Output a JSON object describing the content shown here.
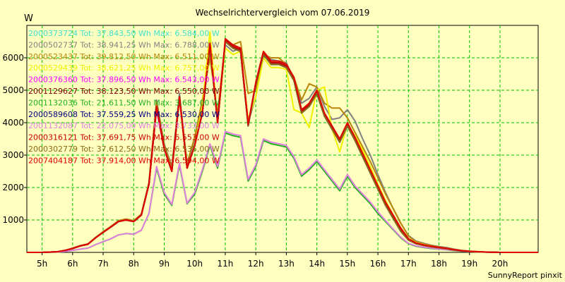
{
  "chart_data": {
    "type": "line",
    "title": "Wechselrichtervergleich vom 07.06.2019",
    "ylabel": "W",
    "xlabel": "",
    "credit": "SunnyReport pinxit",
    "xlim": [
      4.5,
      21.25
    ],
    "ylim": [
      0,
      7000
    ],
    "grid": true,
    "legend_position": "top-left",
    "x_ticks": [
      {
        "v": 5,
        "label": "5h"
      },
      {
        "v": 6,
        "label": "6h"
      },
      {
        "v": 7,
        "label": "7h"
      },
      {
        "v": 8,
        "label": "8h"
      },
      {
        "v": 9,
        "label": "9h"
      },
      {
        "v": 10,
        "label": "10h"
      },
      {
        "v": 11,
        "label": "11h"
      },
      {
        "v": 12,
        "label": "12h"
      },
      {
        "v": 13,
        "label": "13h"
      },
      {
        "v": 14,
        "label": "14h"
      },
      {
        "v": 15,
        "label": "15h"
      },
      {
        "v": 16,
        "label": "16h"
      },
      {
        "v": 17,
        "label": "17h"
      },
      {
        "v": 18,
        "label": "18h"
      },
      {
        "v": 19,
        "label": "19h"
      },
      {
        "v": 20,
        "label": "20h"
      }
    ],
    "y_ticks": [
      {
        "v": 1000,
        "label": "1000"
      },
      {
        "v": 2000,
        "label": "2000"
      },
      {
        "v": 3000,
        "label": "3000"
      },
      {
        "v": 4000,
        "label": "4000"
      },
      {
        "v": 5000,
        "label": "5000"
      },
      {
        "v": 6000,
        "label": "6000"
      }
    ],
    "x": [
      4.5,
      5.0,
      5.5,
      5.75,
      6.0,
      6.25,
      6.5,
      6.75,
      7.0,
      7.25,
      7.5,
      7.75,
      8.0,
      8.25,
      8.5,
      8.75,
      9.0,
      9.25,
      9.5,
      9.75,
      10.0,
      10.25,
      10.5,
      10.75,
      11.0,
      11.25,
      11.5,
      11.75,
      12.0,
      12.25,
      12.5,
      12.75,
      13.0,
      13.25,
      13.5,
      13.75,
      14.0,
      14.25,
      14.5,
      14.75,
      15.0,
      15.25,
      15.5,
      15.75,
      16.0,
      16.25,
      16.5,
      16.75,
      17.0,
      17.25,
      17.5,
      17.75,
      18.0,
      18.25,
      18.5,
      18.75,
      19.0,
      19.25,
      19.5,
      19.75,
      20.0,
      20.25,
      20.5,
      20.75,
      21.0,
      21.25
    ],
    "series": [
      {
        "legend": "2000373724 Tot: 37.843,50 Wh Max: 6.584,00 W",
        "color": "#40e0d0",
        "values": [
          0,
          0,
          20,
          60,
          120,
          200,
          250,
          450,
          620,
          780,
          950,
          1000,
          950,
          1150,
          2100,
          4500,
          3200,
          2500,
          4800,
          2600,
          3300,
          4300,
          6500,
          4000,
          6500,
          6300,
          6200,
          3900,
          5200,
          6100,
          5800,
          5800,
          5700,
          5300,
          4300,
          4500,
          4900,
          4200,
          3800,
          3400,
          3900,
          3500,
          3000,
          2500,
          2000,
          1500,
          1100,
          700,
          400,
          280,
          220,
          180,
          150,
          120,
          80,
          50,
          30,
          20,
          10,
          5,
          0,
          0,
          0,
          0,
          0,
          0
        ]
      },
      {
        "legend": "2000502737 Tot: 38.941,25 Wh Max: 6.788,00 W",
        "color": "#808080",
        "values": [
          0,
          0,
          20,
          60,
          130,
          210,
          260,
          460,
          630,
          800,
          970,
          1020,
          970,
          1180,
          2150,
          4700,
          3350,
          2650,
          4900,
          2700,
          3500,
          4600,
          6100,
          4200,
          6400,
          6200,
          6300,
          4000,
          4800,
          6050,
          5950,
          5900,
          5850,
          5350,
          4600,
          4750,
          5100,
          4500,
          4100,
          4150,
          4400,
          4050,
          3500,
          3000,
          2400,
          1850,
          1350,
          900,
          520,
          350,
          280,
          220,
          180,
          150,
          100,
          60,
          40,
          25,
          10,
          5,
          0,
          0,
          0,
          0,
          0,
          0
        ]
      },
      {
        "legend": "2000523437 Tot: 39.812,50 Wh Max: 6.511,00 W",
        "color": "#b8860b",
        "values": [
          0,
          0,
          20,
          60,
          130,
          210,
          260,
          460,
          640,
          800,
          980,
          1030,
          980,
          1180,
          2150,
          4650,
          3300,
          2600,
          4800,
          2750,
          3550,
          4700,
          6000,
          4300,
          6500,
          6400,
          6500,
          4900,
          5000,
          6100,
          6000,
          6000,
          5800,
          5400,
          4700,
          5200,
          5100,
          4600,
          4450,
          4450,
          4150,
          3700,
          3250,
          2800,
          2300,
          1800,
          1350,
          900,
          500,
          330,
          260,
          210,
          170,
          130,
          90,
          60,
          40,
          25,
          10,
          5,
          0,
          0,
          0,
          0,
          0,
          0
        ]
      },
      {
        "legend": "2000529439 Tot: 38.621,25 Wh Max: 6.757,00 W",
        "color": "#f0f000",
        "values": [
          0,
          0,
          20,
          60,
          120,
          200,
          250,
          450,
          620,
          780,
          950,
          1000,
          950,
          1150,
          2100,
          4400,
          3200,
          2500,
          4700,
          2600,
          3300,
          4500,
          6800,
          4000,
          6300,
          6100,
          6200,
          4100,
          4800,
          6000,
          5700,
          5700,
          5650,
          4400,
          4300,
          3850,
          5000,
          5100,
          3800,
          3100,
          3950,
          3600,
          3150,
          2650,
          2100,
          1600,
          1150,
          750,
          420,
          300,
          240,
          190,
          150,
          120,
          80,
          50,
          30,
          20,
          10,
          5,
          0,
          0,
          0,
          0,
          0,
          0
        ]
      },
      {
        "legend": "2000376360 Tot: 37.896,50 Wh Max: 6.543,00 W",
        "color": "#ff00ff",
        "values": [
          0,
          0,
          20,
          60,
          120,
          200,
          250,
          450,
          620,
          780,
          950,
          1000,
          950,
          1150,
          2100,
          4400,
          3200,
          2500,
          4750,
          2600,
          3300,
          4300,
          6400,
          4000,
          6500,
          6300,
          6200,
          3900,
          5200,
          6100,
          5800,
          5800,
          5700,
          5300,
          4300,
          4500,
          4900,
          4200,
          3800,
          3400,
          3900,
          3450,
          2950,
          2450,
          1950,
          1450,
          1050,
          650,
          380,
          270,
          210,
          170,
          140,
          110,
          70,
          45,
          30,
          20,
          10,
          5,
          0,
          0,
          0,
          0,
          0,
          0
        ]
      },
      {
        "legend": "2001129627 Tot: 38.123,50 Wh Max: 6.550,00 W",
        "color": "#800000",
        "values": [
          0,
          0,
          20,
          60,
          120,
          200,
          250,
          450,
          620,
          780,
          950,
          1000,
          950,
          1150,
          2100,
          4500,
          3200,
          2500,
          4800,
          2600,
          3300,
          4300,
          6400,
          4000,
          6550,
          6350,
          6250,
          3950,
          5200,
          6150,
          5850,
          5850,
          5750,
          5350,
          4350,
          4550,
          4950,
          4250,
          3850,
          3450,
          3950,
          3500,
          3000,
          2500,
          2000,
          1500,
          1100,
          700,
          400,
          280,
          220,
          180,
          150,
          120,
          80,
          50,
          30,
          20,
          10,
          5,
          0,
          0,
          0,
          0,
          0,
          0
        ]
      },
      {
        "legend": "2001132036 Tot: 21.611,50 Wh Max: 3.687,00 W",
        "color": "#20b020",
        "values": [
          0,
          0,
          10,
          30,
          60,
          100,
          130,
          240,
          330,
          420,
          540,
          580,
          560,
          680,
          1200,
          2600,
          1800,
          1450,
          2700,
          1500,
          1800,
          2500,
          3300,
          2600,
          3680,
          3600,
          3550,
          2200,
          2650,
          3450,
          3350,
          3300,
          3250,
          2900,
          2350,
          2550,
          2800,
          2500,
          2200,
          1900,
          2350,
          2000,
          1750,
          1500,
          1200,
          950,
          700,
          450,
          270,
          190,
          150,
          120,
          100,
          80,
          55,
          35,
          22,
          14,
          8,
          3,
          0,
          0,
          0,
          0,
          0,
          0
        ]
      },
      {
        "legend": "2000589608 Tot: 37.559,25 Wh Max: 6.530,00 W",
        "color": "#000080",
        "values": [
          0,
          0,
          20,
          60,
          120,
          200,
          250,
          450,
          620,
          780,
          950,
          1000,
          950,
          1150,
          2100,
          4500,
          3200,
          2500,
          4800,
          2600,
          3300,
          4300,
          6350,
          4000,
          6500,
          6300,
          6200,
          3900,
          5200,
          6100,
          5800,
          5800,
          5700,
          5300,
          4300,
          4500,
          4900,
          4200,
          3800,
          3400,
          3900,
          3450,
          2950,
          2450,
          1950,
          1450,
          1050,
          650,
          380,
          270,
          210,
          170,
          140,
          110,
          70,
          45,
          30,
          20,
          10,
          5,
          0,
          0,
          0,
          0,
          0,
          0
        ]
      },
      {
        "legend": "2001132087 Tot: 22.075,00 Wh Max: 3.733,00 W",
        "color": "#e080e0",
        "values": [
          0,
          0,
          10,
          30,
          60,
          100,
          130,
          240,
          330,
          420,
          540,
          580,
          560,
          680,
          1200,
          2650,
          1850,
          1480,
          2750,
          1520,
          1850,
          2550,
          3350,
          2650,
          3730,
          3650,
          3600,
          2250,
          2700,
          3500,
          3400,
          3350,
          3300,
          2950,
          2400,
          2600,
          2850,
          2550,
          2250,
          1950,
          2400,
          2050,
          1800,
          1550,
          1250,
          980,
          720,
          470,
          280,
          200,
          160,
          130,
          105,
          85,
          60,
          38,
          24,
          15,
          8,
          3,
          0,
          0,
          0,
          0,
          0,
          0
        ]
      },
      {
        "legend": "2000316121 Tot: 37.691,75 Wh Max: 6.553,00 W",
        "color": "#c80000",
        "values": [
          0,
          0,
          20,
          60,
          120,
          200,
          250,
          450,
          620,
          780,
          950,
          1000,
          950,
          1150,
          2100,
          4500,
          3200,
          2500,
          4800,
          2600,
          3300,
          4300,
          6400,
          4000,
          6550,
          6350,
          6250,
          3950,
          5200,
          6150,
          5850,
          5850,
          5750,
          5350,
          4350,
          4550,
          4950,
          4250,
          3850,
          3450,
          3950,
          3500,
          3000,
          2500,
          2000,
          1500,
          1100,
          700,
          400,
          280,
          220,
          180,
          150,
          120,
          80,
          50,
          30,
          20,
          10,
          5,
          0,
          0,
          0,
          0,
          0,
          0
        ]
      },
      {
        "legend": "2000302779 Tot: 37.612,50 Wh Max: 6.535,00 W",
        "color": "#8b6914",
        "values": [
          0,
          0,
          20,
          60,
          120,
          200,
          250,
          450,
          620,
          780,
          950,
          1000,
          950,
          1150,
          2100,
          4500,
          3200,
          2500,
          4800,
          2600,
          3300,
          4300,
          6350,
          4000,
          6500,
          6300,
          6200,
          3900,
          5200,
          6100,
          5800,
          5800,
          5700,
          5300,
          4300,
          4500,
          4900,
          4200,
          3800,
          3400,
          3900,
          3450,
          2950,
          2450,
          1950,
          1450,
          1050,
          650,
          380,
          270,
          210,
          170,
          140,
          110,
          70,
          45,
          30,
          20,
          10,
          5,
          0,
          0,
          0,
          0,
          0,
          0
        ]
      },
      {
        "legend": "2007404187 Tot: 37.914,00 Wh Max: 6.594,00 W",
        "color": "#e00000",
        "values": [
          0,
          0,
          20,
          60,
          120,
          200,
          250,
          450,
          620,
          780,
          950,
          1000,
          950,
          1150,
          2100,
          4500,
          3200,
          2500,
          4800,
          2600,
          3300,
          4300,
          6450,
          4000,
          6590,
          6400,
          6300,
          3950,
          5250,
          6200,
          5900,
          5900,
          5800,
          5400,
          4400,
          4600,
          5000,
          4300,
          3900,
          3500,
          4000,
          3550,
          3050,
          2550,
          2050,
          1550,
          1150,
          750,
          420,
          290,
          230,
          190,
          155,
          125,
          85,
          55,
          35,
          22,
          12,
          6,
          0,
          0,
          0,
          0,
          0,
          0
        ]
      }
    ]
  }
}
